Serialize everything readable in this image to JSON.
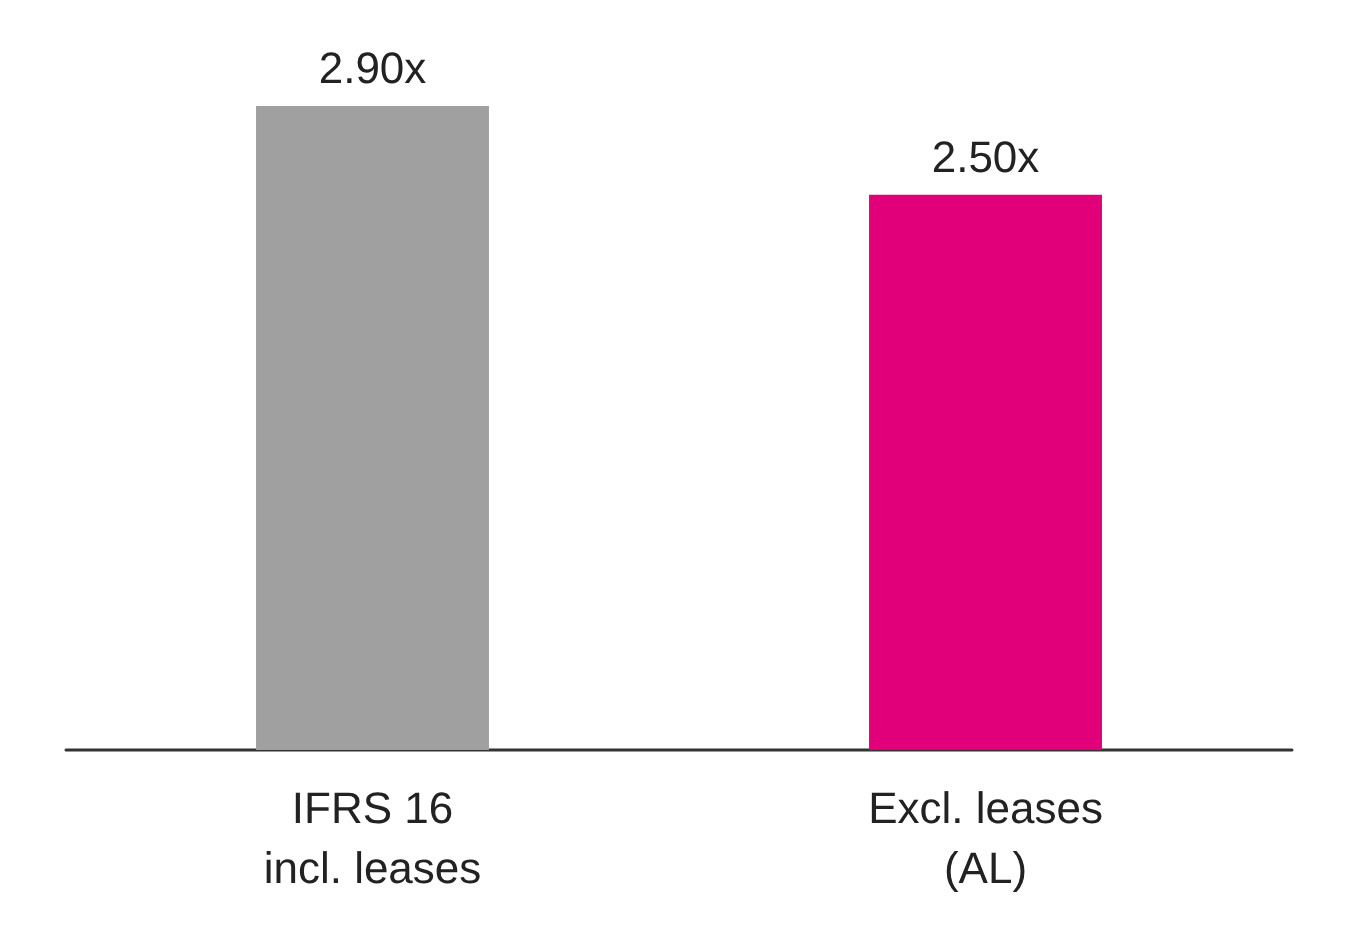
{
  "chart_data": {
    "type": "bar",
    "categories": [
      "IFRS 16\nincl. leases",
      "Excl. leases\n(AL)"
    ],
    "values": [
      2.9,
      2.5
    ],
    "colors": [
      "#a0a0a0",
      "#e2007a"
    ],
    "value_labels": [
      "2.90x",
      "2.50x"
    ]
  }
}
